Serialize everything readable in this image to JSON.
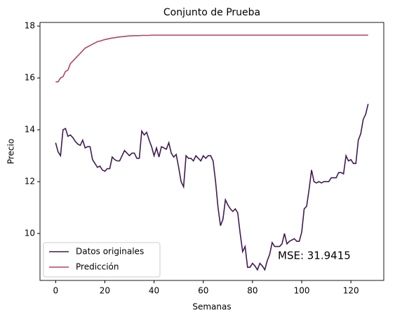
{
  "chart_data": {
    "type": "line",
    "title": "Conjunto de Prueba",
    "xlabel": "Semanas",
    "ylabel": "Precio",
    "annotation": "MSE: 31.9415",
    "x": [
      0,
      1,
      2,
      3,
      4,
      5,
      6,
      7,
      8,
      9,
      10,
      11,
      12,
      13,
      14,
      15,
      16,
      17,
      18,
      19,
      20,
      21,
      22,
      23,
      24,
      25,
      26,
      27,
      28,
      29,
      30,
      31,
      32,
      33,
      34,
      35,
      36,
      37,
      38,
      39,
      40,
      41,
      42,
      43,
      44,
      45,
      46,
      47,
      48,
      49,
      50,
      51,
      52,
      53,
      54,
      55,
      56,
      57,
      58,
      59,
      60,
      61,
      62,
      63,
      64,
      65,
      66,
      67,
      68,
      69,
      70,
      71,
      72,
      73,
      74,
      75,
      76,
      77,
      78,
      79,
      80,
      81,
      82,
      83,
      84,
      85,
      86,
      87,
      88,
      89,
      90,
      91,
      92,
      93,
      94,
      95,
      96,
      97,
      98,
      99,
      100,
      101,
      102,
      103,
      104,
      105,
      106,
      107,
      108,
      109,
      110,
      111,
      112,
      113,
      114,
      115,
      116,
      117,
      118,
      119,
      120,
      121,
      122,
      123,
      124,
      125,
      126,
      127
    ],
    "series": [
      {
        "name": "Datos originales",
        "color": "#3f1c53",
        "values": [
          13.5,
          13.15,
          13.0,
          14.0,
          14.05,
          13.75,
          13.8,
          13.7,
          13.55,
          13.45,
          13.4,
          13.6,
          13.3,
          13.35,
          13.35,
          12.85,
          12.7,
          12.55,
          12.6,
          12.45,
          12.4,
          12.5,
          12.5,
          12.95,
          12.85,
          12.8,
          12.8,
          13.0,
          13.2,
          13.1,
          13.0,
          13.1,
          13.1,
          12.9,
          12.9,
          13.95,
          13.8,
          13.9,
          13.6,
          13.35,
          13.0,
          13.3,
          12.95,
          13.35,
          13.3,
          13.25,
          13.5,
          13.1,
          12.95,
          13.05,
          12.55,
          12.0,
          11.8,
          13.0,
          12.9,
          12.9,
          12.8,
          13.0,
          12.9,
          12.8,
          13.0,
          12.9,
          13.0,
          13.0,
          12.8,
          12.0,
          11.0,
          10.3,
          10.55,
          11.3,
          11.1,
          10.95,
          10.85,
          10.95,
          10.8,
          10.0,
          9.3,
          9.5,
          8.7,
          8.7,
          8.85,
          8.75,
          8.6,
          8.85,
          8.75,
          8.6,
          8.95,
          9.2,
          9.65,
          9.5,
          9.5,
          9.5,
          9.6,
          10.0,
          9.6,
          9.7,
          9.75,
          9.8,
          9.7,
          9.7,
          10.05,
          10.95,
          11.05,
          11.7,
          12.45,
          12.0,
          11.95,
          12.0,
          11.95,
          12.0,
          12.0,
          12.0,
          12.15,
          12.15,
          12.15,
          12.35,
          12.35,
          12.3,
          13.0,
          12.8,
          12.85,
          12.7,
          12.7,
          13.6,
          13.85,
          14.4,
          14.6,
          15.0
        ]
      },
      {
        "name": "Predicción",
        "color": "#b0465e",
        "values": [
          15.85,
          15.85,
          16.0,
          16.05,
          16.25,
          16.3,
          16.55,
          16.65,
          16.75,
          16.85,
          16.95,
          17.05,
          17.15,
          17.2,
          17.25,
          17.3,
          17.35,
          17.4,
          17.42,
          17.45,
          17.48,
          17.5,
          17.52,
          17.54,
          17.55,
          17.57,
          17.58,
          17.59,
          17.6,
          17.61,
          17.62,
          17.62,
          17.63,
          17.63,
          17.63,
          17.64,
          17.64,
          17.64,
          17.64,
          17.65,
          17.65,
          17.65,
          17.65,
          17.65,
          17.65,
          17.65,
          17.65,
          17.65,
          17.65,
          17.65,
          17.65,
          17.65,
          17.65,
          17.65,
          17.65,
          17.65,
          17.65,
          17.65,
          17.65,
          17.65,
          17.65,
          17.65,
          17.65,
          17.65,
          17.65,
          17.65,
          17.65,
          17.65,
          17.65,
          17.65,
          17.65,
          17.65,
          17.65,
          17.65,
          17.65,
          17.65,
          17.65,
          17.65,
          17.65,
          17.65,
          17.65,
          17.65,
          17.65,
          17.65,
          17.65,
          17.65,
          17.65,
          17.65,
          17.65,
          17.65,
          17.65,
          17.65,
          17.65,
          17.65,
          17.65,
          17.65,
          17.65,
          17.65,
          17.65,
          17.65,
          17.65,
          17.65,
          17.65,
          17.65,
          17.65,
          17.65,
          17.65,
          17.65,
          17.65,
          17.65,
          17.65,
          17.65,
          17.65,
          17.65,
          17.65,
          17.65,
          17.65,
          17.65,
          17.65,
          17.65,
          17.65,
          17.65,
          17.65,
          17.65,
          17.65,
          17.65,
          17.65,
          17.65
        ]
      }
    ],
    "xlim": [
      -6.35,
      133.35
    ],
    "xticks": [
      0,
      20,
      40,
      60,
      80,
      100,
      120
    ],
    "ylim": [
      8.19,
      18.14
    ],
    "yticks": [
      10,
      12,
      14,
      16,
      18
    ],
    "grid": false,
    "legend": "lower left"
  }
}
